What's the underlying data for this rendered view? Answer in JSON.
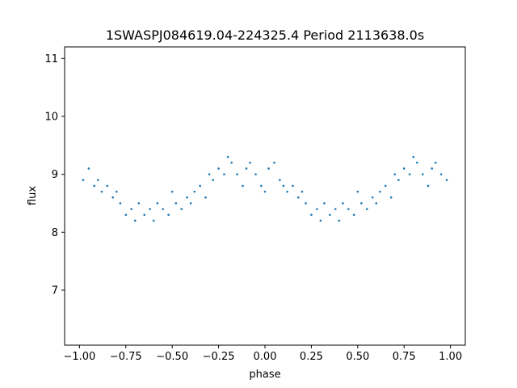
{
  "chart_data": {
    "type": "scatter",
    "title": "1SWASPJ084619.04-224325.4 Period 2113638.0s",
    "xlabel": "phase",
    "ylabel": "flux",
    "xlim": [
      -1.08,
      1.08
    ],
    "ylim": [
      6.05,
      11.2
    ],
    "xticks": [
      -1.0,
      -0.75,
      -0.5,
      -0.25,
      0.0,
      0.25,
      0.5,
      0.75,
      1.0
    ],
    "xtick_labels": [
      "−1.00",
      "−0.75",
      "−0.50",
      "−0.25",
      "0.00",
      "0.25",
      "0.50",
      "0.75",
      "1.00"
    ],
    "yticks": [
      7,
      8,
      9,
      10,
      11
    ],
    "ytick_labels": [
      "7",
      "8",
      "9",
      "10",
      "11"
    ],
    "grid": false,
    "marker_color": "#1f77b4",
    "series": [
      {
        "x": [
          -0.98,
          -0.95,
          -0.92,
          -0.9,
          -0.88,
          -0.85,
          -0.82,
          -0.8,
          -0.78,
          -0.75,
          -0.72,
          -0.7,
          -0.68,
          -0.65,
          -0.62,
          -0.6,
          -0.58,
          -0.55,
          -0.52,
          -0.5,
          -0.48,
          -0.45,
          -0.42,
          -0.4,
          -0.38,
          -0.35,
          -0.32,
          -0.3,
          -0.28,
          -0.25,
          -0.22,
          -0.2,
          -0.18,
          -0.15,
          -0.12,
          -0.1,
          -0.08,
          -0.05,
          -0.02,
          0.0,
          0.02,
          0.05,
          0.08,
          0.1,
          0.12,
          0.15,
          0.18,
          0.2,
          0.22,
          0.25,
          0.28,
          0.3,
          0.32,
          0.35,
          0.38,
          0.4,
          0.42,
          0.45,
          0.48,
          0.5,
          0.52,
          0.55,
          0.58,
          0.6,
          0.62,
          0.65,
          0.68,
          0.7,
          0.72,
          0.75,
          0.78,
          0.8,
          0.82,
          0.85,
          0.88,
          0.9,
          0.92,
          0.95,
          0.98
        ],
        "y": [
          8.9,
          9.1,
          8.8,
          8.9,
          8.7,
          8.8,
          8.6,
          8.7,
          8.5,
          8.3,
          8.4,
          8.2,
          8.5,
          8.3,
          8.4,
          8.2,
          8.5,
          8.4,
          8.3,
          8.7,
          8.5,
          8.4,
          8.6,
          8.5,
          8.7,
          8.8,
          8.6,
          9.0,
          8.9,
          9.1,
          9.0,
          9.3,
          9.2,
          9.0,
          8.8,
          9.1,
          9.2,
          9.0,
          8.8,
          8.7,
          9.1,
          9.2,
          8.9,
          8.8,
          8.7,
          8.8,
          8.6,
          8.7,
          8.5,
          8.3,
          8.4,
          8.2,
          8.5,
          8.3,
          8.4,
          8.2,
          8.5,
          8.4,
          8.3,
          8.7,
          8.5,
          8.4,
          8.6,
          8.5,
          8.7,
          8.8,
          8.6,
          9.0,
          8.9,
          9.1,
          9.0,
          9.3,
          9.2,
          9.0,
          8.8,
          9.1,
          9.2,
          9.0,
          8.9
        ]
      }
    ]
  }
}
